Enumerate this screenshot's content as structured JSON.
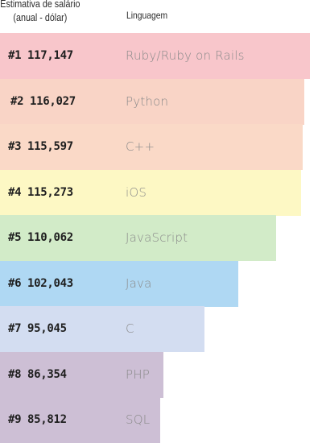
{
  "header": {
    "salary_line1": "Estimativa de salário",
    "salary_line2": "(anual - dólar)",
    "language": "Linguagem"
  },
  "chart_data": {
    "type": "bar",
    "orientation": "horizontal",
    "categories": [
      "Ruby/Ruby on Rails",
      "Python",
      "C++",
      "iOS",
      "JavaScript",
      "Java",
      "C",
      "PHP",
      "SQL"
    ],
    "ranks": [
      "#1",
      "#2",
      "#3",
      "#4",
      "#5",
      "#6",
      "#7",
      "#8",
      "#9"
    ],
    "values": [
      117147,
      116027,
      115597,
      115273,
      110062,
      102043,
      95045,
      86354,
      85812
    ],
    "value_labels": [
      "117,147",
      "116,027",
      "115,597",
      "115,273",
      "110,062",
      "102,043",
      "95,045",
      "86,354",
      "85,812"
    ],
    "colors": [
      "#f8c6cb",
      "#f9d4c6",
      "#fad9c7",
      "#fdf8c4",
      "#d2ebc8",
      "#afd8f3",
      "#d3ddf1",
      "#cdbfd5",
      "#cdbfd5"
    ],
    "xlim": [
      0,
      117147
    ],
    "grid": false,
    "legend": "none"
  }
}
